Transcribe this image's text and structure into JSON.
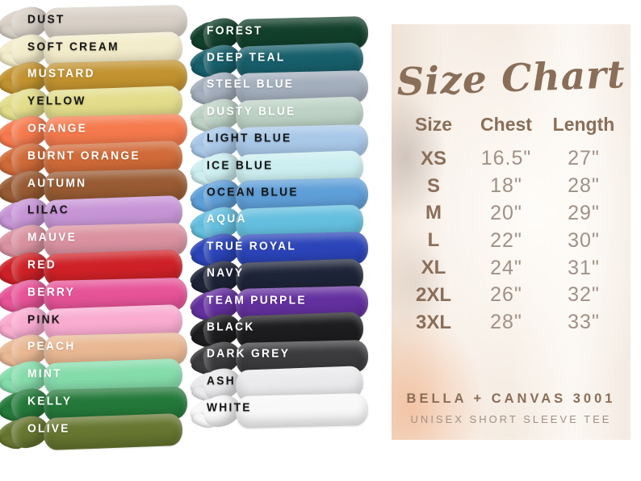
{
  "color_chart": {
    "columns": [
      {
        "items": [
          {
            "label": "DUST",
            "color": "#d8d0c6",
            "text_color": "#161616"
          },
          {
            "label": "SOFT CREAM",
            "color": "#f3ecca",
            "text_color": "#161616"
          },
          {
            "label": "MUSTARD",
            "color": "#c1922f",
            "text_color": "#ffffff"
          },
          {
            "label": "YELLOW",
            "color": "#e3dd8b",
            "text_color": "#161616"
          },
          {
            "label": "ORANGE",
            "color": "#f57a4d",
            "text_color": "#ffffff"
          },
          {
            "label": "BURNT ORANGE",
            "color": "#d06a38",
            "text_color": "#ffffff"
          },
          {
            "label": "AUTUMN",
            "color": "#985b33",
            "text_color": "#ffffff"
          },
          {
            "label": "LILAC",
            "color": "#c795d6",
            "text_color": "#161616"
          },
          {
            "label": "MAUVE",
            "color": "#da92a0",
            "text_color": "#ffffff"
          },
          {
            "label": "RED",
            "color": "#ce2127",
            "text_color": "#ffffff"
          },
          {
            "label": "BERRY",
            "color": "#e65397",
            "text_color": "#ffffff"
          },
          {
            "label": "PINK",
            "color": "#f9abd0",
            "text_color": "#161616"
          },
          {
            "label": "PEACH",
            "color": "#e9b893",
            "text_color": "#ffffff"
          },
          {
            "label": "MINT",
            "color": "#85dcab",
            "text_color": "#ffffff"
          },
          {
            "label": "KELLY",
            "color": "#24793a",
            "text_color": "#ffffff"
          },
          {
            "label": "OLIVE",
            "color": "#677630",
            "text_color": "#ffffff"
          }
        ]
      },
      {
        "items": [
          {
            "label": "FOREST",
            "color": "#123f2b",
            "text_color": "#ffffff"
          },
          {
            "label": "DEEP TEAL",
            "color": "#175f6b",
            "text_color": "#ffffff"
          },
          {
            "label": "STEEL BLUE",
            "color": "#a3aebc",
            "text_color": "#ffffff"
          },
          {
            "label": "DUSTY BLUE",
            "color": "#bdd2c5",
            "text_color": "#ffffff"
          },
          {
            "label": "LIGHT BLUE",
            "color": "#a8c8e8",
            "text_color": "#161616"
          },
          {
            "label": "ICE BLUE",
            "color": "#cceef0",
            "text_color": "#161616"
          },
          {
            "label": "OCEAN BLUE",
            "color": "#5f9fd8",
            "text_color": "#161616"
          },
          {
            "label": "AQUA",
            "color": "#64bfdf",
            "text_color": "#ffffff"
          },
          {
            "label": "TRUE ROYAL",
            "color": "#2b44b8",
            "text_color": "#ffffff"
          },
          {
            "label": "NAVY",
            "color": "#1e2438",
            "text_color": "#ffffff"
          },
          {
            "label": "TEAM PURPLE",
            "color": "#63309e",
            "text_color": "#ffffff"
          },
          {
            "label": "BLACK",
            "color": "#1d1d1f",
            "text_color": "#ffffff"
          },
          {
            "label": "DARK GREY",
            "color": "#3b3b3d",
            "text_color": "#ffffff"
          },
          {
            "label": "ASH",
            "color": "#eaeaec",
            "text_color": "#161616"
          },
          {
            "label": "WHITE",
            "color": "#f8f8f8",
            "text_color": "#161616"
          }
        ]
      }
    ]
  },
  "size_chart": {
    "title": "Size Chart",
    "headers": [
      "Size",
      "Chest",
      "Length"
    ],
    "rows": [
      [
        "XS",
        "16.5\"",
        "27\""
      ],
      [
        "S",
        "18\"",
        "28\""
      ],
      [
        "M",
        "20\"",
        "29\""
      ],
      [
        "L",
        "22\"",
        "30\""
      ],
      [
        "XL",
        "24\"",
        "31\""
      ],
      [
        "2XL",
        "26\"",
        "32\""
      ],
      [
        "3XL",
        "28\"",
        "33\""
      ]
    ],
    "brand": "BELLA + CANVAS 3001",
    "product": "UNISEX SHORT SLEEVE TEE",
    "accent_color": "#8a6e58",
    "value_color": "#a09186"
  },
  "chart_data": {
    "type": "table",
    "title": "Size Chart",
    "columns": [
      "Size",
      "Chest",
      "Length"
    ],
    "rows": [
      [
        "XS",
        "16.5\"",
        "27\""
      ],
      [
        "S",
        "18\"",
        "28\""
      ],
      [
        "M",
        "20\"",
        "29\""
      ],
      [
        "L",
        "22\"",
        "30\""
      ],
      [
        "XL",
        "24\"",
        "31\""
      ],
      [
        "2XL",
        "26\"",
        "32\""
      ],
      [
        "3XL",
        "28\"",
        "33\""
      ]
    ]
  }
}
